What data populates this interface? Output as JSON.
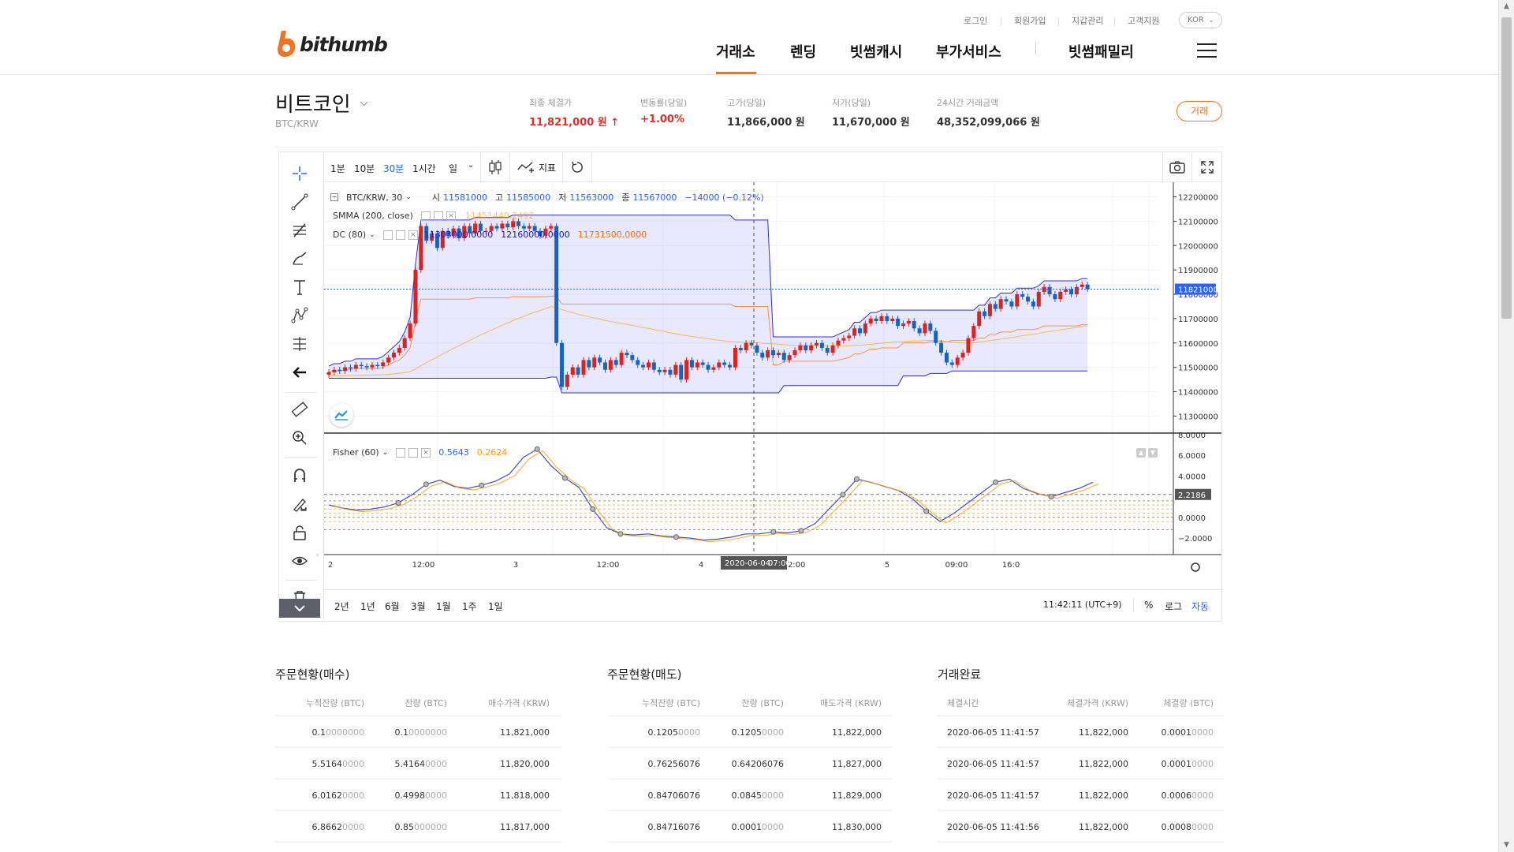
{
  "header": {
    "logo_text": "bithumb",
    "util_links": [
      "로그인",
      "회원가입",
      "지갑관리",
      "고객지원"
    ],
    "lang": "KOR",
    "nav": [
      "거래소",
      "렌딩",
      "빗썸캐시",
      "부가서비스",
      "빗썸패밀리"
    ],
    "active_nav": "거래소",
    "accent_color": "#f37321"
  },
  "coin": {
    "name": "비트코인",
    "pair": "BTC/KRW",
    "trade_button": "거래"
  },
  "stats": [
    {
      "label": "최종 체결가",
      "value": "11,821,000 원 ↑",
      "color": "#e32d28"
    },
    {
      "label": "변동률(당일)",
      "value": "+1.00%",
      "color": "#e32d28"
    },
    {
      "label": "고가(당일)",
      "value": "11,866,000 원",
      "color": "#333333"
    },
    {
      "label": "저가(당일)",
      "value": "11,670,000 원",
      "color": "#333333"
    },
    {
      "label": "24시간 거래금액",
      "value": "48,352,099,066 원",
      "color": "#333333"
    }
  ],
  "chart_toolbar": {
    "timeframes": [
      "1분",
      "10분",
      "30분",
      "1시간",
      "일"
    ],
    "active_timeframe": "30분",
    "indicators_label": "지표"
  },
  "chart_legend": {
    "symbol": "BTC/KRW, 30",
    "o_label": "시",
    "o": "11581000",
    "h_label": "고",
    "h": "11585000",
    "l_label": "저",
    "l": "11563000",
    "c_label": "종",
    "c": "11567000",
    "change": "−14000 (−0.12%)",
    "smma_label": "SMMA (200, close)",
    "smma_value": "11451440.2492",
    "dc_label": "DC (80)",
    "dc_upper": "12160000.0000",
    "dc_lower": "11303000.0000",
    "dc_basis": "11731500.0000",
    "fisher_label": "Fisher (60)",
    "fisher_value1": "0.5643",
    "fisher_value2": "0.2624"
  },
  "chart_data": {
    "type": "candlestick",
    "price_ticks": [
      "12200000",
      "12100000",
      "12000000",
      "11900000",
      "11800000",
      "11700000",
      "11600000",
      "11500000",
      "11400000",
      "11300000"
    ],
    "price_range": [
      11230000,
      12260000
    ],
    "last_price": "11821000",
    "last_price_value": 11821000,
    "fisher_ticks": [
      "8.0000",
      "6.0000",
      "4.0000",
      "2.0000",
      "0.0000",
      "−2.0000"
    ],
    "fisher_range": [
      -3.6,
      8.0
    ],
    "fisher_marker": "2.2186",
    "fisher_marker_value": 2.2186,
    "time_ticks": [
      "2",
      "12:00",
      "3",
      "12:00",
      "4",
      "12:00",
      "5",
      "09:00",
      "16:0"
    ],
    "crosshair_label_date": "2020-06-04",
    "crosshair_label_time": "07:00",
    "closes": [
      11480000,
      11490000,
      11485000,
      11500000,
      11495000,
      11510000,
      11505000,
      11500000,
      11510000,
      11505000,
      11520000,
      11540000,
      11560000,
      11580000,
      11620000,
      11680000,
      11900000,
      12080000,
      12020000,
      12050000,
      11990000,
      12060000,
      12040000,
      12070000,
      12030000,
      12080000,
      12050000,
      12090000,
      12060000,
      12060000,
      12080000,
      12070000,
      12090000,
      12075000,
      12100000,
      12080000,
      12070000,
      12080000,
      12060000,
      12040000,
      12070000,
      12080000,
      11600000,
      11420000,
      11470000,
      11500000,
      11470000,
      11530000,
      11500000,
      11540000,
      11520000,
      11490000,
      11530000,
      11510000,
      11560000,
      11550000,
      11530000,
      11510000,
      11500000,
      11520000,
      11490000,
      11480000,
      11490000,
      11470000,
      11510000,
      11450000,
      11530000,
      11500000,
      11520000,
      11510000,
      11490000,
      11500000,
      11520000,
      11510000,
      11500000,
      11580000,
      11570000,
      11600000,
      11590000,
      11560000,
      11540000,
      11570000,
      11550000,
      11560000,
      11530000,
      11550000,
      11570000,
      11590000,
      11570000,
      11590000,
      11600000,
      11580000,
      11560000,
      11590000,
      11610000,
      11620000,
      11630000,
      11660000,
      11640000,
      11680000,
      11700000,
      11690000,
      11710000,
      11690000,
      11700000,
      11670000,
      11680000,
      11690000,
      11660000,
      11640000,
      11680000,
      11650000,
      11600000,
      11560000,
      11520000,
      11510000,
      11540000,
      11560000,
      11620000,
      11670000,
      11730000,
      11710000,
      11760000,
      11740000,
      11780000,
      11770000,
      11750000,
      11800000,
      11790000,
      11770000,
      11750000,
      11810000,
      11830000,
      11800000,
      11780000,
      11810000,
      11820000,
      11800000,
      11830000,
      11840000,
      11821000
    ],
    "fisher": [
      1.2,
      0.9,
      0.7,
      0.8,
      1.0,
      1.4,
      2.2,
      3.2,
      3.6,
      3.0,
      2.8,
      3.1,
      3.5,
      4.2,
      5.8,
      6.6,
      5.0,
      3.8,
      2.9,
      0.8,
      -1.0,
      -1.6,
      -1.7,
      -1.6,
      -1.8,
      -1.9,
      -2.0,
      -2.2,
      -2.1,
      -1.9,
      -1.6,
      -1.6,
      -1.4,
      -1.5,
      -1.3,
      -0.6,
      0.8,
      2.2,
      3.7,
      3.4,
      3.0,
      2.6,
      1.8,
      0.6,
      -0.4,
      0.4,
      1.4,
      2.4,
      3.4,
      3.7,
      2.8,
      2.3,
      2.0,
      2.4,
      2.8,
      3.4
    ]
  },
  "range_buttons": [
    "2년",
    "1년",
    "6월",
    "3월",
    "1월",
    "1주",
    "1일"
  ],
  "chart_footer": {
    "clock": "11:42:11 (UTC+9)",
    "percent": "%",
    "log": "로그",
    "auto": "자동"
  },
  "buy_orders": {
    "title": "주문현황(매수)",
    "headers": [
      "누적잔량 (BTC)",
      "잔량 (BTC)",
      "매수가격 (KRW)"
    ],
    "rows": [
      {
        "cum_main": "0.1",
        "cum_dim": "0000000",
        "qty_main": "0.1",
        "qty_dim": "0000000",
        "price": "11,821,000"
      },
      {
        "cum_main": "5.5164",
        "cum_dim": "0000",
        "qty_main": "5.4164",
        "qty_dim": "0000",
        "price": "11,820,000"
      },
      {
        "cum_main": "6.0162",
        "cum_dim": "0000",
        "qty_main": "0.4998",
        "qty_dim": "0000",
        "price": "11,818,000"
      },
      {
        "cum_main": "6.8662",
        "cum_dim": "0000",
        "qty_main": "0.85",
        "qty_dim": "000000",
        "price": "11,817,000"
      }
    ]
  },
  "sell_orders": {
    "title": "주문현황(매도)",
    "headers": [
      "누적잔량 (BTC)",
      "잔량 (BTC)",
      "매도가격 (KRW)"
    ],
    "rows": [
      {
        "cum_main": "0.1205",
        "cum_dim": "0000",
        "qty_main": "0.1205",
        "qty_dim": "0000",
        "price": "11,822,000"
      },
      {
        "cum_main": "0.76256076",
        "cum_dim": "",
        "qty_main": "0.64206076",
        "qty_dim": "",
        "price": "11,827,000"
      },
      {
        "cum_main": "0.84706076",
        "cum_dim": "",
        "qty_main": "0.0845",
        "qty_dim": "0000",
        "price": "11,829,000"
      },
      {
        "cum_main": "0.84716076",
        "cum_dim": "",
        "qty_main": "0.0001",
        "qty_dim": "0000",
        "price": "11,830,000"
      }
    ]
  },
  "trades": {
    "title": "거래완료",
    "headers": [
      "체결시간",
      "체결가격 (KRW)",
      "체결량 (BTC)"
    ],
    "rows": [
      {
        "time": "2020-06-05 11:41:57",
        "price": "11,822,000",
        "qty_main": "0.0001",
        "qty_dim": "0000"
      },
      {
        "time": "2020-06-05 11:41:57",
        "price": "11,822,000",
        "qty_main": "0.0001",
        "qty_dim": "0000"
      },
      {
        "time": "2020-06-05 11:41:57",
        "price": "11,822,000",
        "qty_main": "0.0006",
        "qty_dim": "0000"
      },
      {
        "time": "2020-06-05 11:41:56",
        "price": "11,822,000",
        "qty_main": "0.0008",
        "qty_dim": "0000"
      }
    ]
  }
}
